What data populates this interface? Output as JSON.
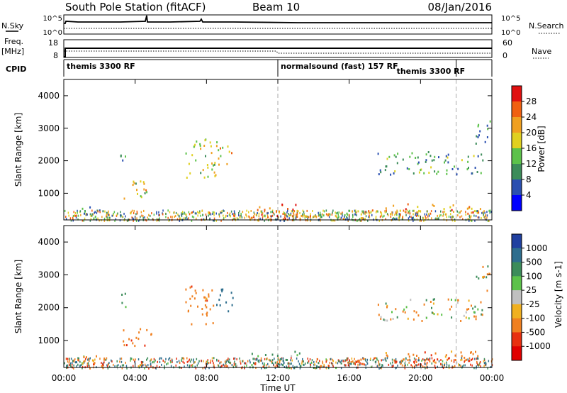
{
  "header": {
    "station": "South Pole Station (fitACF)",
    "beam": "Beam 10",
    "date": "08/Jan/2016"
  },
  "left_labels": {
    "nsky": "N.Sky",
    "freq_line1": "Freq.",
    "freq_line2": "[MHz]",
    "cpid": "CPID"
  },
  "right_labels": {
    "nsearch": "N.Search",
    "nave": "Nave"
  },
  "scales": {
    "noise_left_top": "10^5",
    "noise_left_bottom": "10^0",
    "noise_right_top": "10^5",
    "noise_right_bottom": "10^0",
    "freq_top": "18",
    "freq_bottom": "8",
    "nave_top": "60",
    "nave_bottom": "0"
  },
  "cpid_segments": [
    {
      "label": "themis 3300 RF",
      "start_h": 0,
      "end_h": 12
    },
    {
      "label": "normalsound (fast) 157 RF",
      "start_h": 12,
      "end_h": 22
    },
    {
      "label": "themis 3300 RF",
      "start_h": 18.5,
      "end_h": 22
    }
  ],
  "x_axis": {
    "label": "Time UT",
    "ticks": [
      "00:00",
      "04:00",
      "08:00",
      "12:00",
      "16:00",
      "20:00",
      "00:00"
    ],
    "range_hours": [
      0,
      24
    ]
  },
  "power_panel": {
    "ylabel": "Slant Range [km]",
    "yticks": [
      "1000",
      "2000",
      "3000",
      "4000"
    ],
    "colorbar_label": "Power [dB]",
    "colorbar_ticks": [
      "4",
      "8",
      "12",
      "16",
      "20",
      "24",
      "28"
    ],
    "colors": [
      "#0000ff",
      "#2a4fb0",
      "#3c8c5a",
      "#5cc24a",
      "#e0d020",
      "#f0a020",
      "#f06010",
      "#e01010"
    ]
  },
  "velocity_panel": {
    "ylabel": "Slant Range [km]",
    "yticks": [
      "1000",
      "2000",
      "3000",
      "4000"
    ],
    "colorbar_label": "Velocity [m s-1]",
    "colorbar_ticks": [
      "1000",
      "500",
      "100",
      "25",
      "-25",
      "-100",
      "-500",
      "-1000"
    ],
    "colors": [
      "#2040a0",
      "#2e6e8e",
      "#3c8c5a",
      "#5cc24a",
      "#c0c0c0",
      "#f0b020",
      "#f08020",
      "#e83010",
      "#e00000"
    ]
  },
  "chart_data": {
    "type": "heatmap",
    "x_range_hours": [
      0,
      24
    ],
    "y_range_km": [
      180,
      4500
    ],
    "backscatter_regions": [
      {
        "t0": 3.3,
        "t1": 5.0,
        "r0": 850,
        "r1": 1400,
        "power": 18,
        "vel": -300
      },
      {
        "t0": 3.0,
        "t1": 3.5,
        "r0": 2000,
        "r1": 2500,
        "power": 10,
        "vel": 300
      },
      {
        "t0": 6.8,
        "t1": 8.5,
        "r0": 1500,
        "r1": 2700,
        "power": 18,
        "vel": -300
      },
      {
        "t0": 8.5,
        "t1": 9.5,
        "r0": 1900,
        "r1": 2600,
        "power": 20,
        "vel": 800
      },
      {
        "t0": 1.0,
        "t1": 2.5,
        "r0": 180,
        "r1": 600,
        "power": 10,
        "vel": -200
      },
      {
        "t0": 10.5,
        "t1": 14.0,
        "r0": 180,
        "r1": 700,
        "power": 26,
        "vel": 200
      },
      {
        "t0": 14.0,
        "t1": 17.0,
        "r0": 180,
        "r1": 500,
        "power": 14,
        "vel": -100
      },
      {
        "t0": 17.0,
        "t1": 23.5,
        "r0": 400,
        "r1": 700,
        "power": 22,
        "vel": -300
      },
      {
        "t0": 17.5,
        "t1": 23.5,
        "r0": 1600,
        "r1": 2300,
        "power": 12,
        "vel": 0
      },
      {
        "t0": 23.0,
        "t1": 23.9,
        "r0": 2500,
        "r1": 3300,
        "power": 8,
        "vel": 0
      }
    ]
  }
}
